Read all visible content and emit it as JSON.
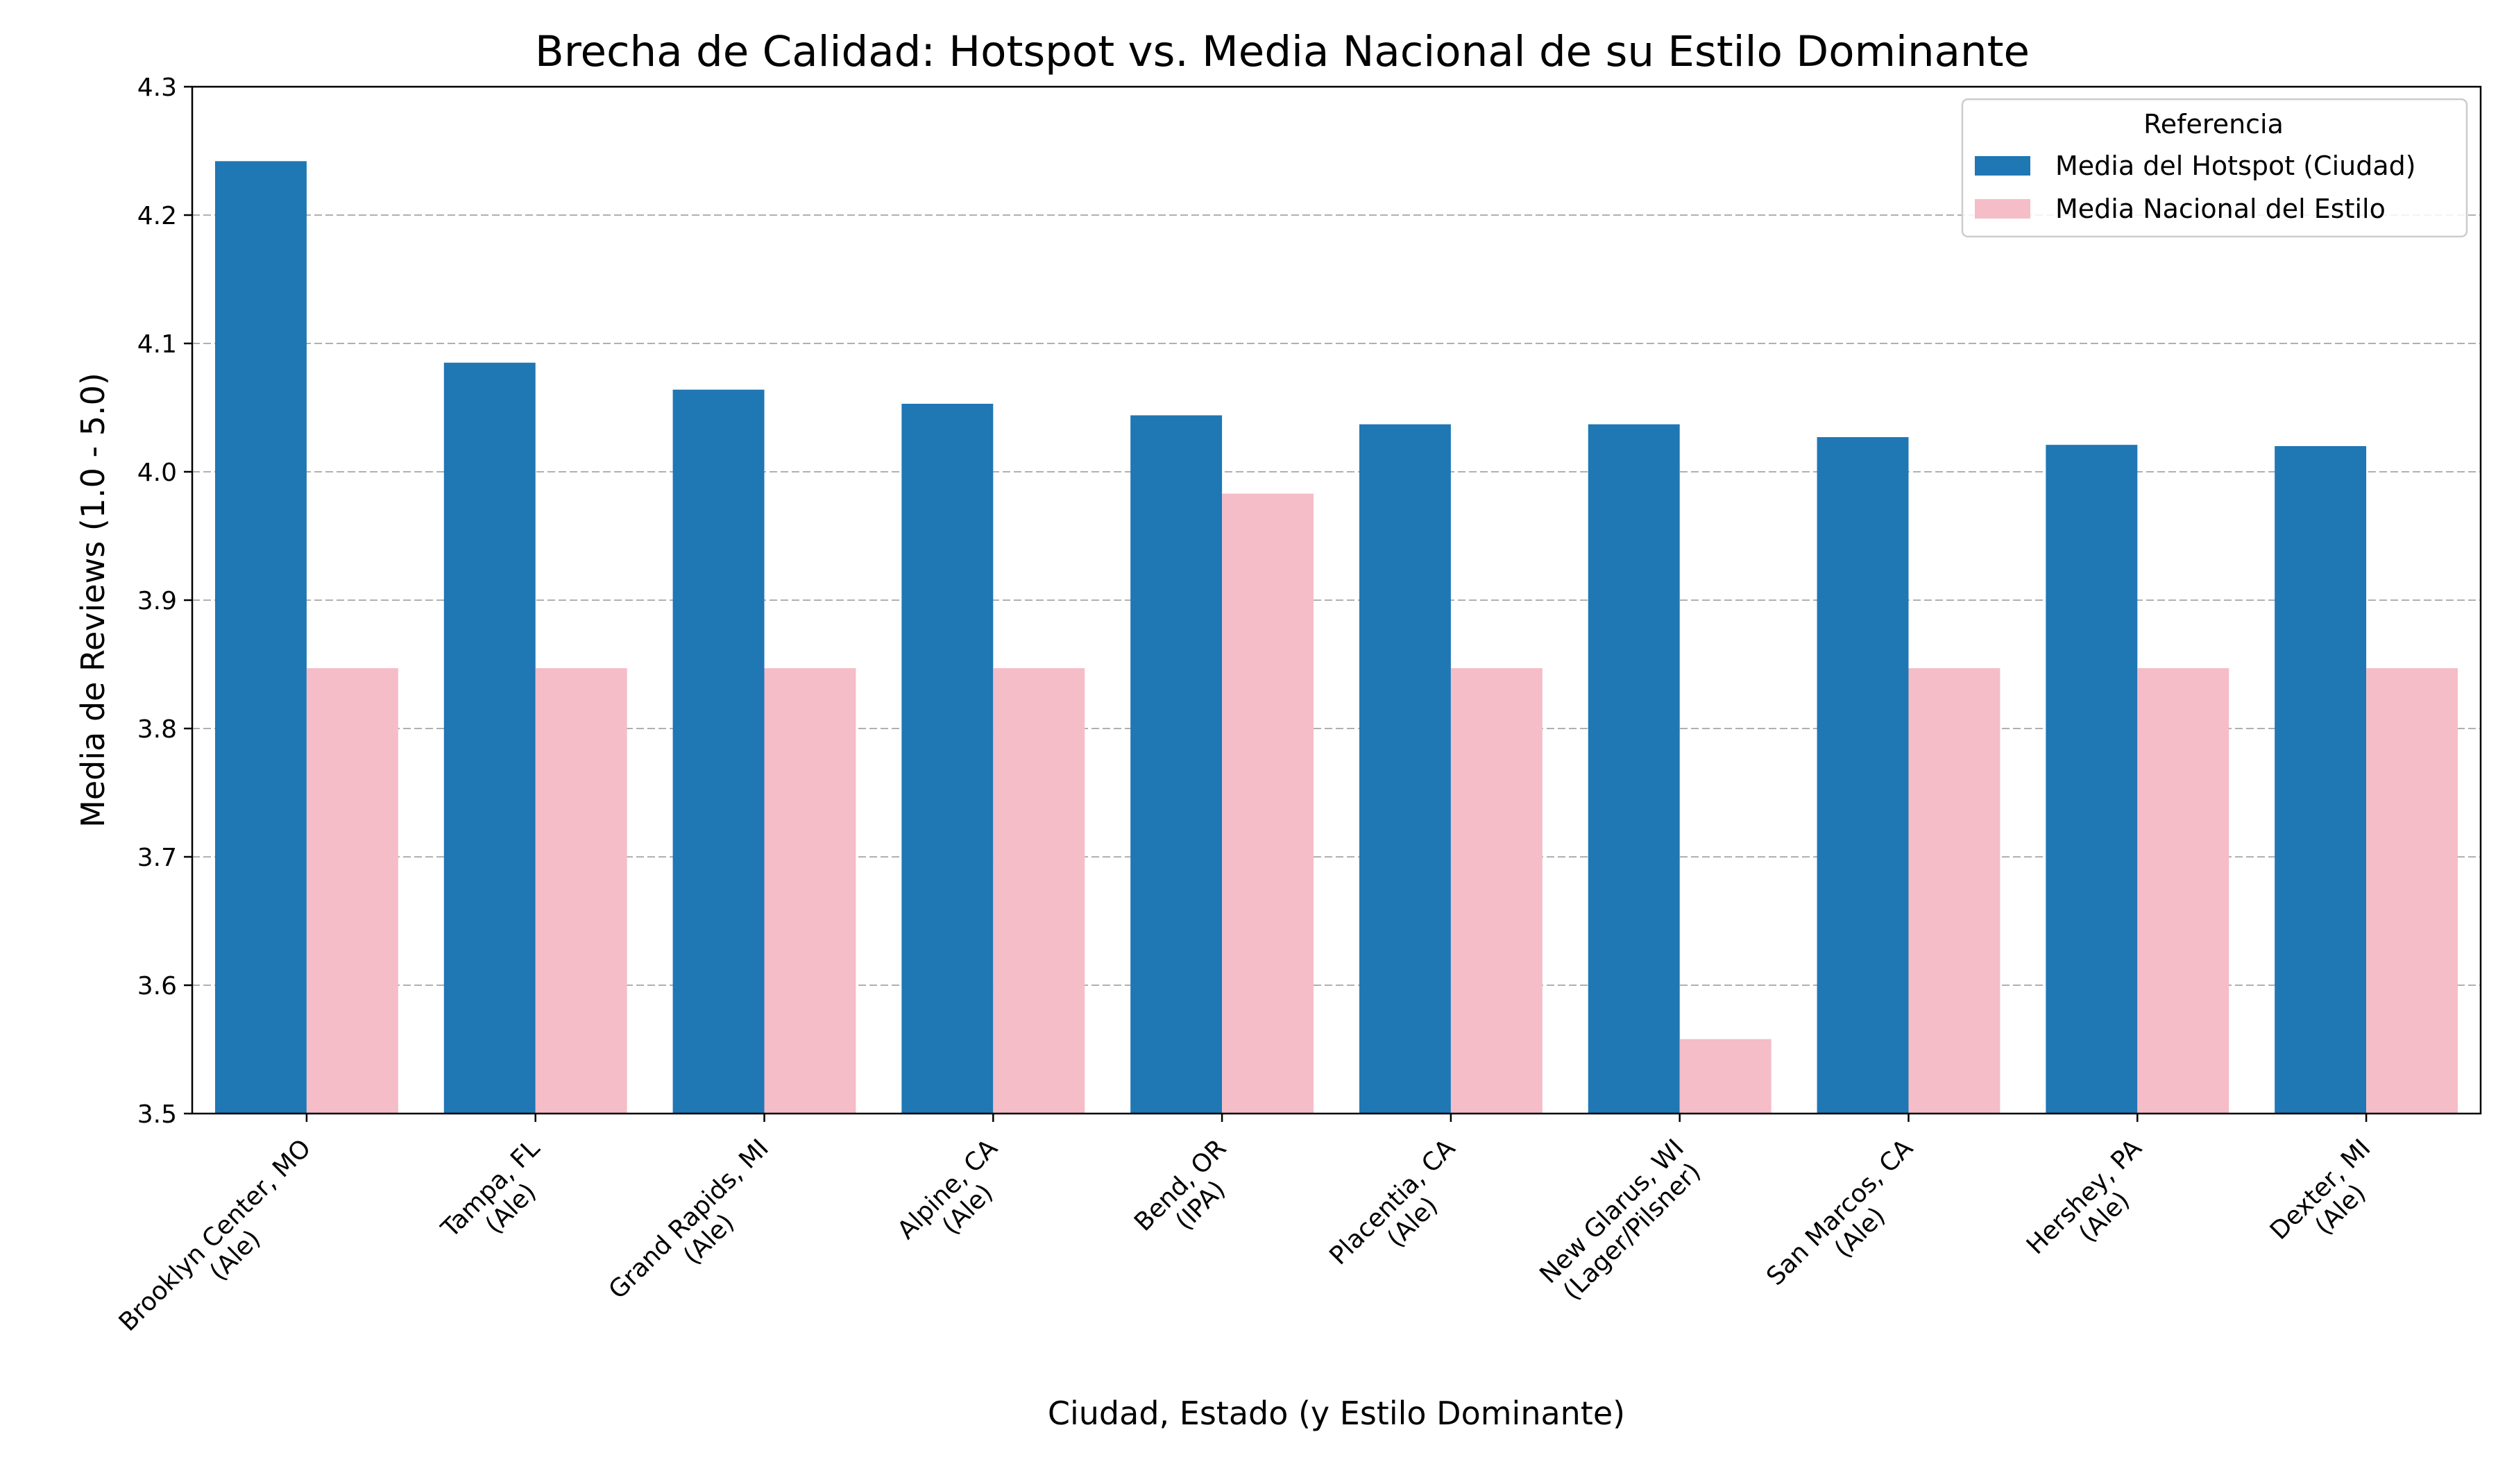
{
  "chart_data": {
    "type": "bar",
    "title": "Brecha de Calidad: Hotspot vs. Media Nacional de su Estilo Dominante",
    "xlabel": "Ciudad, Estado (y Estilo Dominante)",
    "ylabel": "Media de Reviews (1.0 - 5.0)",
    "ylim": [
      3.5,
      4.3
    ],
    "yticks": [
      "3.5",
      "3.6",
      "3.7",
      "3.8",
      "3.9",
      "4.0",
      "4.1",
      "4.2",
      "4.3"
    ],
    "grid": "y-dashed",
    "categories": [
      [
        "Brooklyn Center, MO",
        "(Ale)"
      ],
      [
        "Tampa, FL",
        "(Ale)"
      ],
      [
        "Grand Rapids, MI",
        "(Ale)"
      ],
      [
        "Alpine, CA",
        "(Ale)"
      ],
      [
        "Bend, OR",
        "(IPA)"
      ],
      [
        "Placentia, CA",
        "(Ale)"
      ],
      [
        "New Glarus, WI",
        "(Lager/Pilsner)"
      ],
      [
        "San Marcos, CA",
        "(Ale)"
      ],
      [
        "Hershey, PA",
        "(Ale)"
      ],
      [
        "Dexter, MI",
        "(Ale)"
      ]
    ],
    "series": [
      {
        "name": "Media del Hotspot (Ciudad)",
        "color": "#1f77b4",
        "values": [
          4.242,
          4.085,
          4.064,
          4.053,
          4.044,
          4.037,
          4.037,
          4.027,
          4.021,
          4.02
        ]
      },
      {
        "name": "Media Nacional del Estilo",
        "color": "#f5bdc7",
        "values": [
          3.847,
          3.847,
          3.847,
          3.847,
          3.983,
          3.847,
          3.558,
          3.847,
          3.847,
          3.847
        ]
      }
    ],
    "legend": {
      "title": "Referencia",
      "position": "top-right"
    }
  }
}
